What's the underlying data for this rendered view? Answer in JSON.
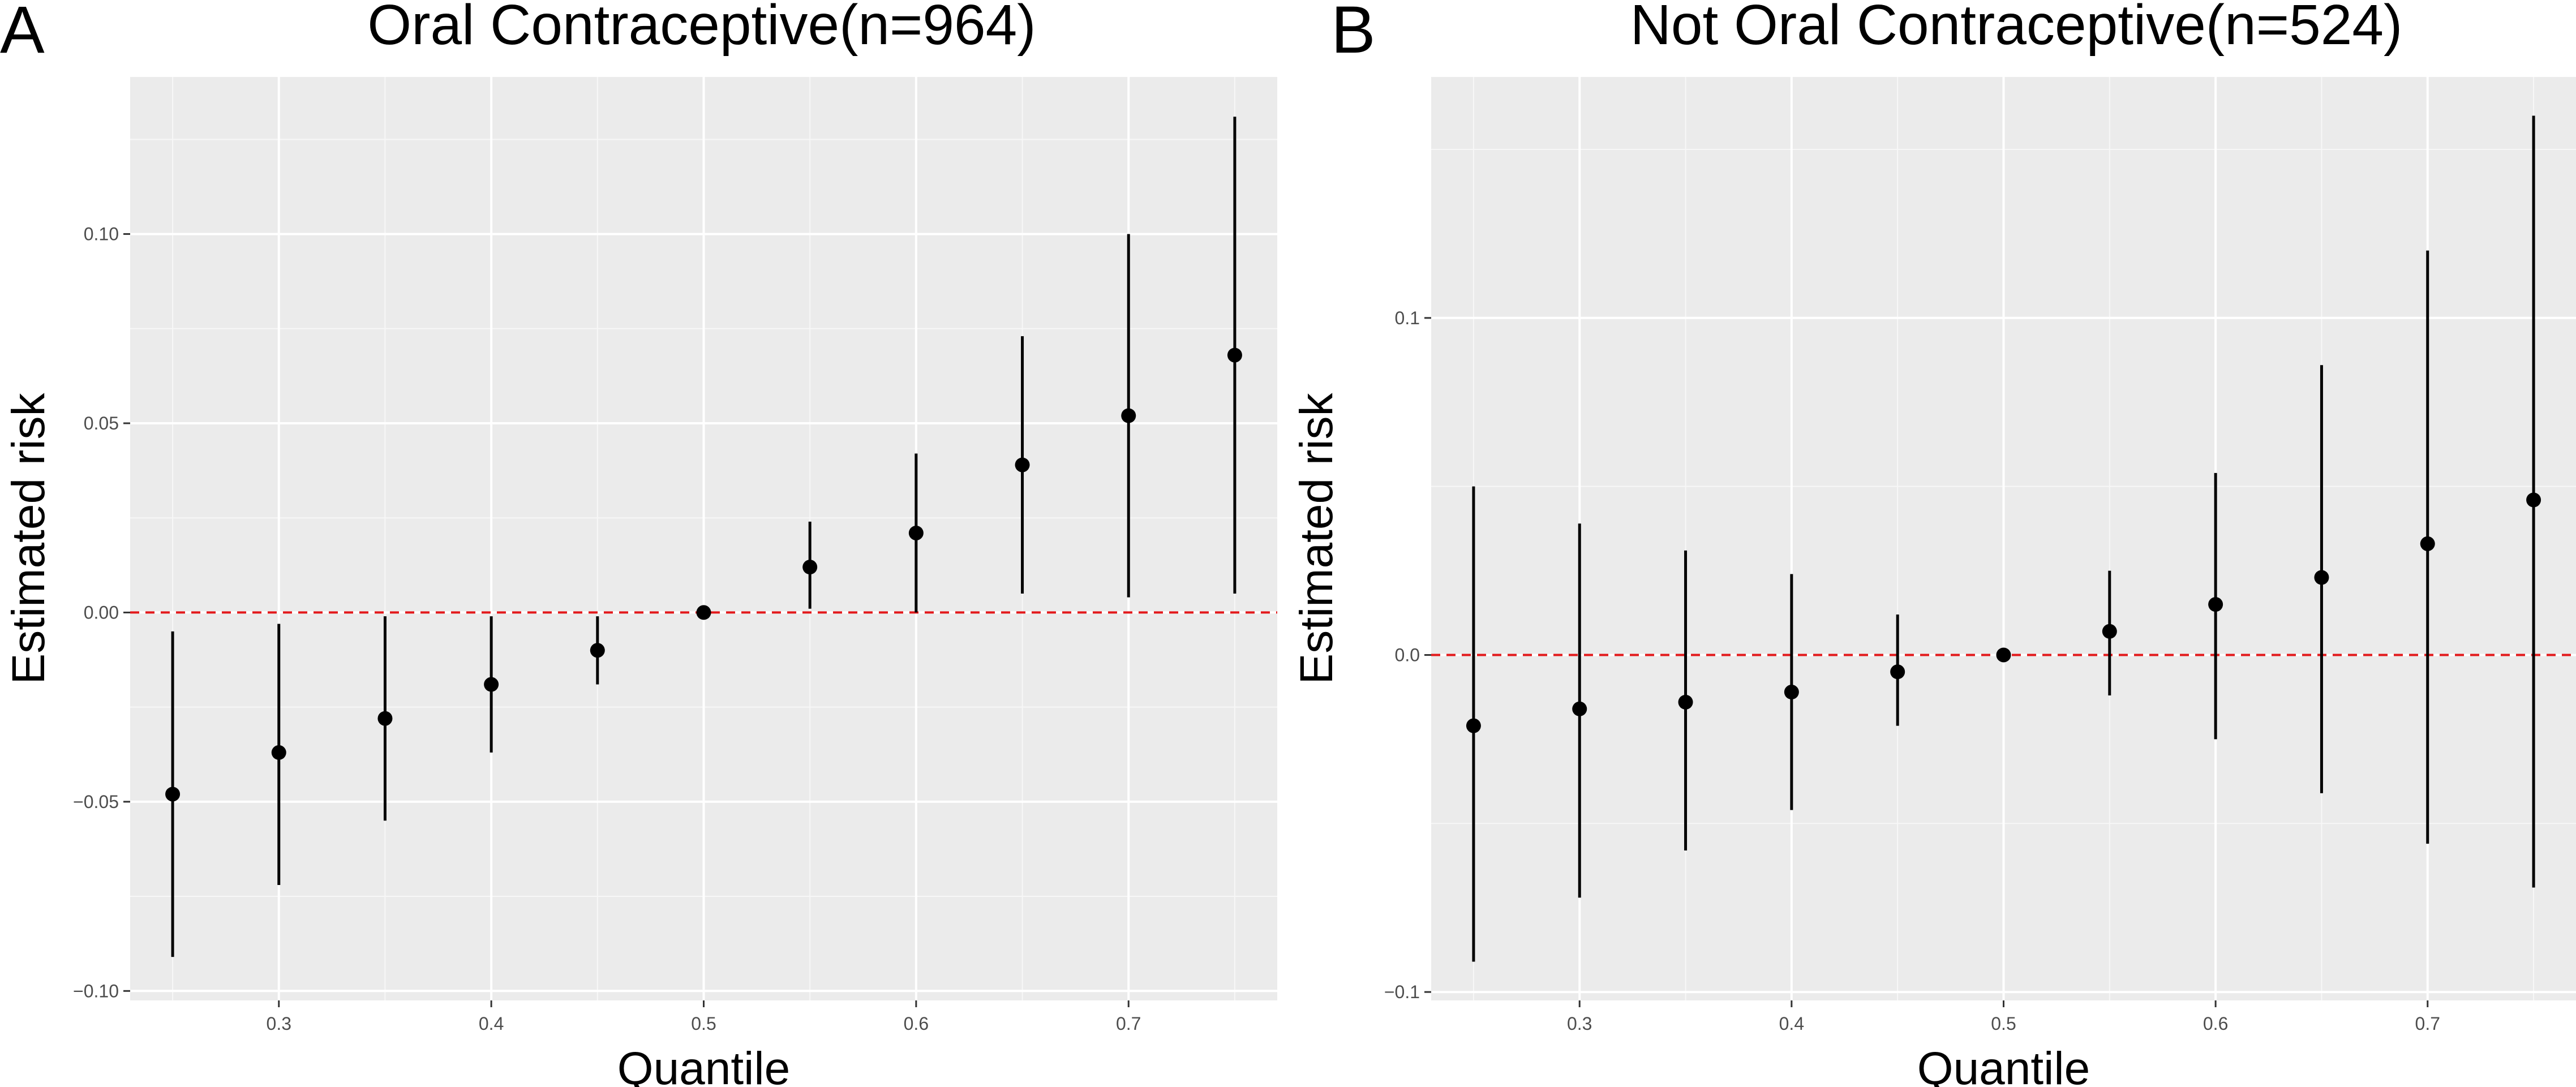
{
  "chart_data": [
    {
      "panel_label": "A",
      "type": "scatter",
      "title": "Oral Contraceptive(n=964)",
      "xlabel": "Quantile",
      "ylabel": "Estimated risk",
      "x": [
        0.25,
        0.3,
        0.35,
        0.4,
        0.45,
        0.5,
        0.55,
        0.6,
        0.65,
        0.7,
        0.75
      ],
      "y": [
        -0.048,
        -0.037,
        -0.028,
        -0.019,
        -0.01,
        0.0,
        0.012,
        0.021,
        0.039,
        0.052,
        0.068
      ],
      "ci_low": [
        -0.091,
        -0.072,
        -0.055,
        -0.037,
        -0.019,
        0.0,
        0.001,
        0.0,
        0.005,
        0.004,
        0.005
      ],
      "ci_high": [
        -0.005,
        -0.003,
        -0.001,
        -0.001,
        -0.001,
        0.0,
        0.024,
        0.042,
        0.073,
        0.1,
        0.131
      ],
      "xlim": [
        0.23,
        0.77
      ],
      "ylim": [
        -0.1025,
        0.1415
      ],
      "xticks": [
        0.3,
        0.4,
        0.5,
        0.6,
        0.7
      ],
      "xtick_labels": [
        "0.3",
        "0.4",
        "0.5",
        "0.6",
        "0.7"
      ],
      "yticks": [
        -0.1,
        -0.05,
        0.0,
        0.05,
        0.1
      ],
      "ytick_labels": [
        "−0.10",
        "−0.05",
        "0.00",
        "0.05",
        "0.10"
      ],
      "reference_line": {
        "y": 0,
        "color": "#e31a1c",
        "style": "dashed"
      },
      "grid": true
    },
    {
      "panel_label": "B",
      "type": "scatter",
      "title": "Not Oral Contraceptive(n=524)",
      "xlabel": "Quantile",
      "ylabel": "Estimated risk",
      "x": [
        0.25,
        0.3,
        0.35,
        0.4,
        0.45,
        0.5,
        0.55,
        0.6,
        0.65,
        0.7,
        0.75
      ],
      "y": [
        -0.021,
        -0.016,
        -0.014,
        -0.011,
        -0.005,
        0.0,
        0.007,
        0.015,
        0.023,
        0.033,
        0.046
      ],
      "ci_low": [
        -0.091,
        -0.072,
        -0.058,
        -0.046,
        -0.021,
        0.0,
        -0.012,
        -0.025,
        -0.041,
        -0.056,
        -0.069
      ],
      "ci_high": [
        0.05,
        0.039,
        0.031,
        0.024,
        0.012,
        0.0,
        0.025,
        0.054,
        0.086,
        0.12,
        0.16
      ],
      "xlim": [
        0.23,
        0.77
      ],
      "ylim": [
        -0.1025,
        0.1715
      ],
      "xticks": [
        0.3,
        0.4,
        0.5,
        0.6,
        0.7
      ],
      "xtick_labels": [
        "0.3",
        "0.4",
        "0.5",
        "0.6",
        "0.7"
      ],
      "yticks": [
        -0.1,
        0.0,
        0.1
      ],
      "ytick_labels": [
        "−0.1",
        "0.0",
        "0.1"
      ],
      "reference_line": {
        "y": 0,
        "color": "#e31a1c",
        "style": "dashed"
      },
      "grid": true
    }
  ]
}
